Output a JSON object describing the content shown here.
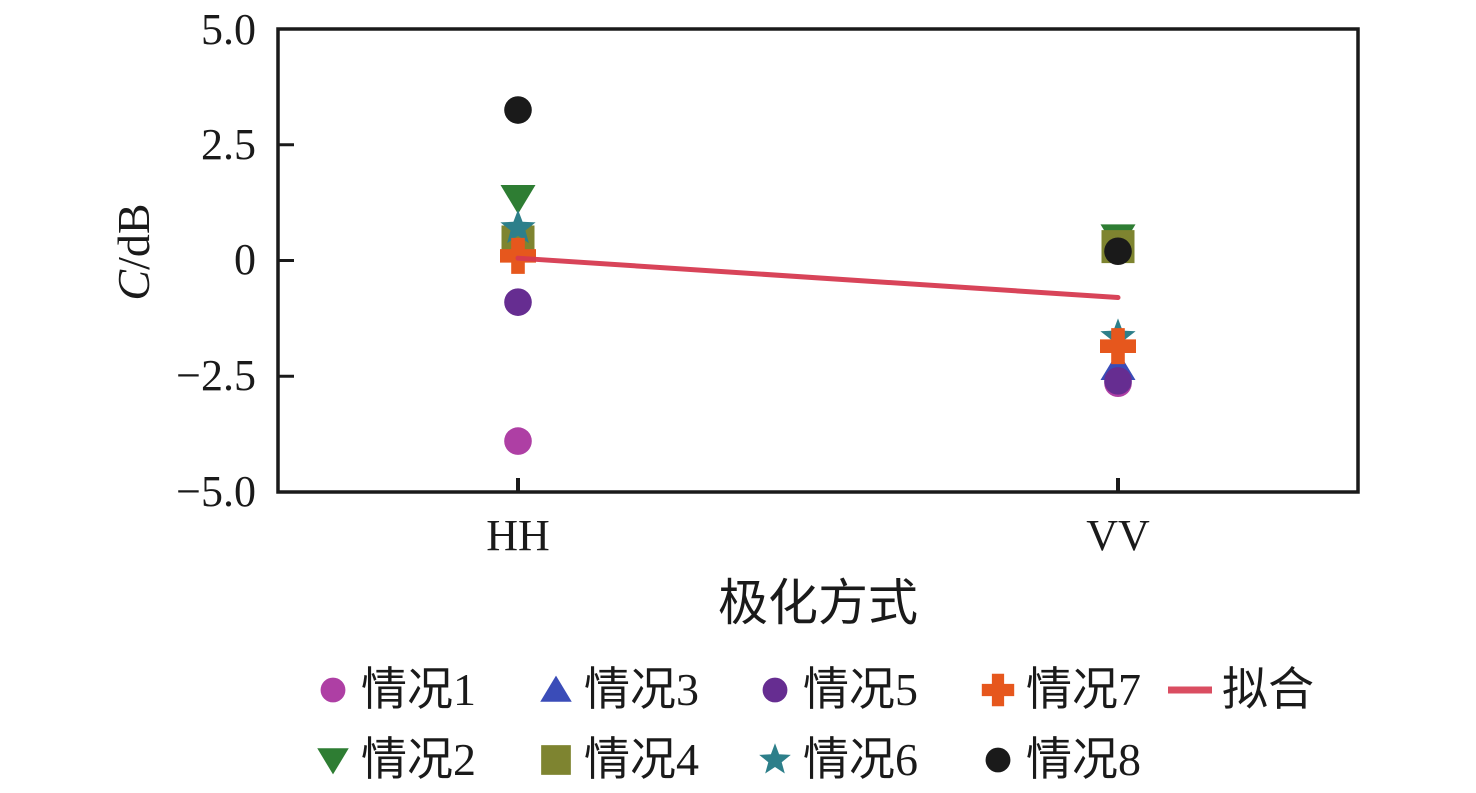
{
  "figure": {
    "ylabel_c": "C",
    "ylabel_unit": "/dB",
    "xlabel": "极化方式",
    "y_ticks": [
      "5.0",
      "2.5",
      "0",
      "−2.5",
      "−5.0"
    ],
    "x_ticks": [
      "HH",
      "VV"
    ]
  },
  "chart_data": {
    "type": "scatter",
    "title": "",
    "xlabel": "极化方式",
    "ylabel": "C/dB",
    "categories": [
      "HH",
      "VV"
    ],
    "ylim": [
      -5.0,
      5.0
    ],
    "y_tick_values": [
      5.0,
      2.5,
      0,
      -2.5,
      -5.0
    ],
    "grid": false,
    "legend_position": "below",
    "axis_color": "#1a1a1a",
    "series": [
      {
        "name": "情况1",
        "marker": "circle",
        "color": "#ae3fa4",
        "values": [
          -3.9,
          -2.65
        ]
      },
      {
        "name": "情况2",
        "marker": "triangle-down",
        "color": "#2e7d33",
        "values": [
          1.35,
          0.5
        ]
      },
      {
        "name": "情况3",
        "marker": "triangle-up",
        "color": "#3a4cb8",
        "values": [
          0.42,
          -2.3
        ]
      },
      {
        "name": "情况4",
        "marker": "square",
        "color": "#7e8430",
        "values": [
          0.4,
          0.3
        ]
      },
      {
        "name": "情况5",
        "marker": "circle",
        "color": "#662d91",
        "values": [
          -0.9,
          -2.6
        ]
      },
      {
        "name": "情况6",
        "marker": "star",
        "color": "#2d7f8a",
        "values": [
          0.7,
          -1.65
        ]
      },
      {
        "name": "情况7",
        "marker": "plus",
        "color": "#e6571d",
        "values": [
          0.1,
          -1.85
        ]
      },
      {
        "name": "情况8",
        "marker": "circle",
        "color": "#1a1a1a",
        "values": [
          3.25,
          0.2
        ]
      }
    ],
    "fit_line": {
      "name": "拟合",
      "color": "#d63a50",
      "values": [
        0.05,
        -0.8
      ]
    }
  },
  "legend": {
    "rows": [
      {
        "items": [
          {
            "series": 0
          },
          {
            "series": 2
          },
          {
            "series": 4
          },
          {
            "series": 6
          },
          {
            "fit": true
          }
        ]
      },
      {
        "items": [
          {
            "series": 1
          },
          {
            "series": 3
          },
          {
            "series": 5
          },
          {
            "series": 7
          }
        ]
      }
    ]
  }
}
